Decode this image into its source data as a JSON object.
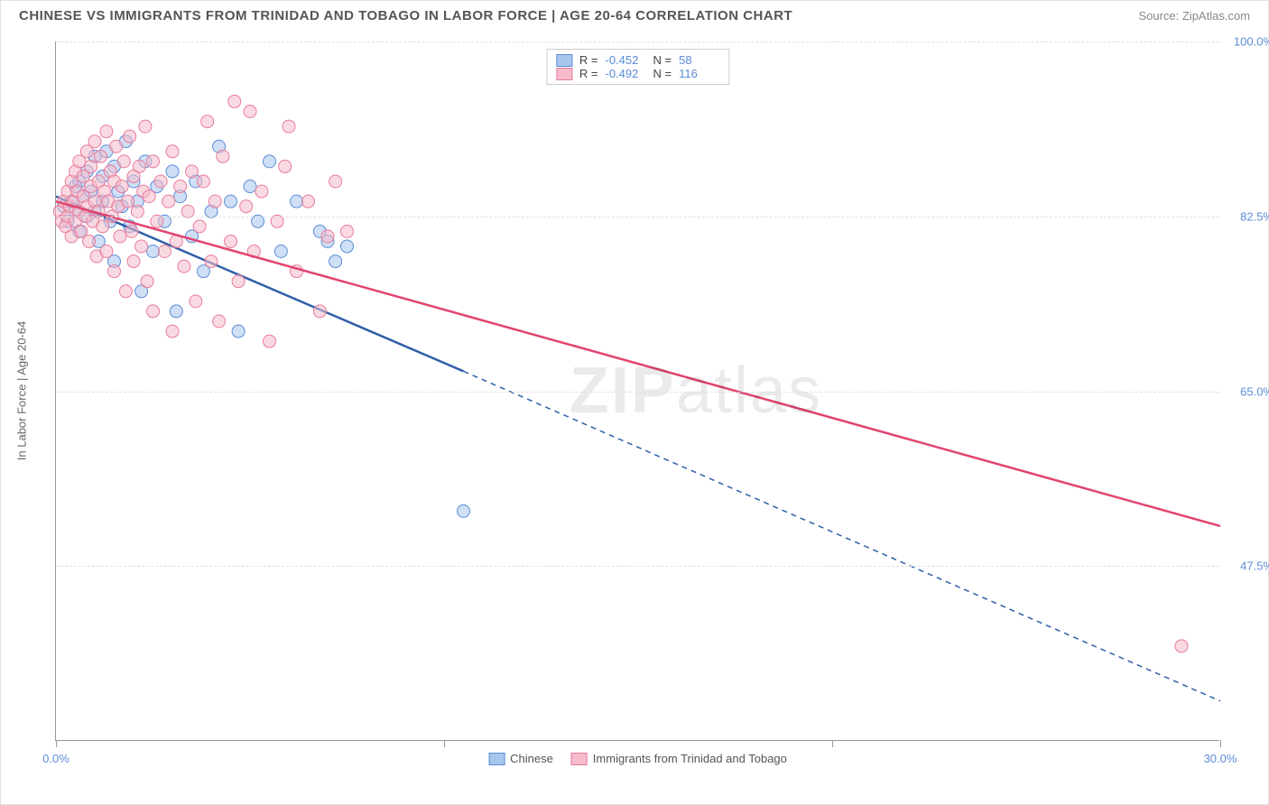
{
  "title": "CHINESE VS IMMIGRANTS FROM TRINIDAD AND TOBAGO IN LABOR FORCE | AGE 20-64 CORRELATION CHART",
  "source": "Source: ZipAtlas.com",
  "watermark": {
    "bold": "ZIP",
    "rest": "atlas"
  },
  "chart": {
    "type": "scatter",
    "background_color": "#ffffff",
    "grid_color": "#e0e0e0",
    "axis_color": "#999999",
    "label_color": "#5b8dd6",
    "text_color": "#666666",
    "title_fontsize": 15,
    "label_fontsize": 13,
    "y_axis_title": "In Labor Force | Age 20-64",
    "xlim": [
      0,
      30
    ],
    "ylim": [
      30,
      100
    ],
    "x_ticks": [
      0,
      10,
      20,
      30
    ],
    "x_tick_labels": [
      "0.0%",
      "",
      "",
      "30.0%"
    ],
    "y_ticks": [
      47.5,
      65.0,
      82.5,
      100.0
    ],
    "y_tick_labels": [
      "47.5%",
      "65.0%",
      "82.5%",
      "100.0%"
    ],
    "marker_radius": 7,
    "marker_opacity": 0.55,
    "line_width": 2.5,
    "series": [
      {
        "name": "Chinese",
        "color": "#7aa8e0",
        "fill": "#a8c5ec",
        "stroke": "#5b8dd6",
        "line_color": "#2e5fa8",
        "R": "-0.452",
        "N": "58",
        "regression": {
          "x1": 0,
          "y1": 84.5,
          "x2_solid": 10.5,
          "y2_solid": 67.0,
          "x2_dash": 30,
          "y2_dash": 34.0
        },
        "points": [
          [
            0.2,
            83.5
          ],
          [
            0.3,
            82.0
          ],
          [
            0.4,
            84.0
          ],
          [
            0.5,
            85.5
          ],
          [
            0.5,
            83.0
          ],
          [
            0.6,
            86.0
          ],
          [
            0.6,
            81.0
          ],
          [
            0.7,
            84.5
          ],
          [
            0.8,
            87.0
          ],
          [
            0.8,
            82.5
          ],
          [
            0.9,
            85.0
          ],
          [
            1.0,
            88.5
          ],
          [
            1.0,
            83.0
          ],
          [
            1.1,
            80.0
          ],
          [
            1.2,
            86.5
          ],
          [
            1.2,
            84.0
          ],
          [
            1.3,
            89.0
          ],
          [
            1.4,
            82.0
          ],
          [
            1.5,
            87.5
          ],
          [
            1.5,
            78.0
          ],
          [
            1.6,
            85.0
          ],
          [
            1.7,
            83.5
          ],
          [
            1.8,
            90.0
          ],
          [
            1.9,
            81.5
          ],
          [
            2.0,
            86.0
          ],
          [
            2.1,
            84.0
          ],
          [
            2.2,
            75.0
          ],
          [
            2.3,
            88.0
          ],
          [
            2.5,
            79.0
          ],
          [
            2.6,
            85.5
          ],
          [
            2.8,
            82.0
          ],
          [
            3.0,
            87.0
          ],
          [
            3.1,
            73.0
          ],
          [
            3.2,
            84.5
          ],
          [
            3.5,
            80.5
          ],
          [
            3.6,
            86.0
          ],
          [
            3.8,
            77.0
          ],
          [
            4.0,
            83.0
          ],
          [
            4.2,
            89.5
          ],
          [
            4.5,
            84.0
          ],
          [
            4.7,
            71.0
          ],
          [
            5.0,
            85.5
          ],
          [
            5.2,
            82.0
          ],
          [
            5.5,
            88.0
          ],
          [
            5.8,
            79.0
          ],
          [
            6.2,
            84.0
          ],
          [
            6.8,
            81.0
          ],
          [
            7.0,
            80.0
          ],
          [
            7.2,
            78.0
          ],
          [
            7.5,
            79.5
          ],
          [
            10.5,
            53.0
          ]
        ]
      },
      {
        "name": "Immigrants from Trinidad and Tobago",
        "color": "#f2a3b8",
        "fill": "#f6bccb",
        "stroke": "#e87b9c",
        "line_color": "#e2446f",
        "R": "-0.492",
        "N": "116",
        "regression": {
          "x1": 0,
          "y1": 84.0,
          "x2_solid": 30,
          "y2_solid": 51.5,
          "x2_dash": 30,
          "y2_dash": 51.5
        },
        "points": [
          [
            0.1,
            83.0
          ],
          [
            0.15,
            82.0
          ],
          [
            0.2,
            84.0
          ],
          [
            0.25,
            81.5
          ],
          [
            0.3,
            85.0
          ],
          [
            0.3,
            82.5
          ],
          [
            0.35,
            83.5
          ],
          [
            0.4,
            86.0
          ],
          [
            0.4,
            80.5
          ],
          [
            0.45,
            84.0
          ],
          [
            0.5,
            87.0
          ],
          [
            0.5,
            82.0
          ],
          [
            0.55,
            85.0
          ],
          [
            0.6,
            83.0
          ],
          [
            0.6,
            88.0
          ],
          [
            0.65,
            81.0
          ],
          [
            0.7,
            84.5
          ],
          [
            0.7,
            86.5
          ],
          [
            0.75,
            82.5
          ],
          [
            0.8,
            89.0
          ],
          [
            0.8,
            83.5
          ],
          [
            0.85,
            80.0
          ],
          [
            0.9,
            85.5
          ],
          [
            0.9,
            87.5
          ],
          [
            0.95,
            82.0
          ],
          [
            1.0,
            84.0
          ],
          [
            1.0,
            90.0
          ],
          [
            1.05,
            78.5
          ],
          [
            1.1,
            86.0
          ],
          [
            1.1,
            83.0
          ],
          [
            1.15,
            88.5
          ],
          [
            1.2,
            81.5
          ],
          [
            1.25,
            85.0
          ],
          [
            1.3,
            91.0
          ],
          [
            1.3,
            79.0
          ],
          [
            1.35,
            84.0
          ],
          [
            1.4,
            87.0
          ],
          [
            1.45,
            82.5
          ],
          [
            1.5,
            86.0
          ],
          [
            1.5,
            77.0
          ],
          [
            1.55,
            89.5
          ],
          [
            1.6,
            83.5
          ],
          [
            1.65,
            80.5
          ],
          [
            1.7,
            85.5
          ],
          [
            1.75,
            88.0
          ],
          [
            1.8,
            75.0
          ],
          [
            1.85,
            84.0
          ],
          [
            1.9,
            90.5
          ],
          [
            1.95,
            81.0
          ],
          [
            2.0,
            86.5
          ],
          [
            2.0,
            78.0
          ],
          [
            2.1,
            83.0
          ],
          [
            2.15,
            87.5
          ],
          [
            2.2,
            79.5
          ],
          [
            2.25,
            85.0
          ],
          [
            2.3,
            91.5
          ],
          [
            2.35,
            76.0
          ],
          [
            2.4,
            84.5
          ],
          [
            2.5,
            88.0
          ],
          [
            2.5,
            73.0
          ],
          [
            2.6,
            82.0
          ],
          [
            2.7,
            86.0
          ],
          [
            2.8,
            79.0
          ],
          [
            2.9,
            84.0
          ],
          [
            3.0,
            89.0
          ],
          [
            3.0,
            71.0
          ],
          [
            3.1,
            80.0
          ],
          [
            3.2,
            85.5
          ],
          [
            3.3,
            77.5
          ],
          [
            3.4,
            83.0
          ],
          [
            3.5,
            87.0
          ],
          [
            3.6,
            74.0
          ],
          [
            3.7,
            81.5
          ],
          [
            3.8,
            86.0
          ],
          [
            3.9,
            92.0
          ],
          [
            4.0,
            78.0
          ],
          [
            4.1,
            84.0
          ],
          [
            4.2,
            72.0
          ],
          [
            4.3,
            88.5
          ],
          [
            4.5,
            80.0
          ],
          [
            4.6,
            94.0
          ],
          [
            4.7,
            76.0
          ],
          [
            4.9,
            83.5
          ],
          [
            5.0,
            93.0
          ],
          [
            5.1,
            79.0
          ],
          [
            5.3,
            85.0
          ],
          [
            5.5,
            70.0
          ],
          [
            5.7,
            82.0
          ],
          [
            5.9,
            87.5
          ],
          [
            6.0,
            91.5
          ],
          [
            6.2,
            77.0
          ],
          [
            6.5,
            84.0
          ],
          [
            6.8,
            73.0
          ],
          [
            7.0,
            80.5
          ],
          [
            7.2,
            86.0
          ],
          [
            7.5,
            81.0
          ],
          [
            29.0,
            39.5
          ]
        ]
      }
    ]
  },
  "legend_bottom": [
    {
      "label": "Chinese",
      "series": 0
    },
    {
      "label": "Immigrants from Trinidad and Tobago",
      "series": 1
    }
  ]
}
